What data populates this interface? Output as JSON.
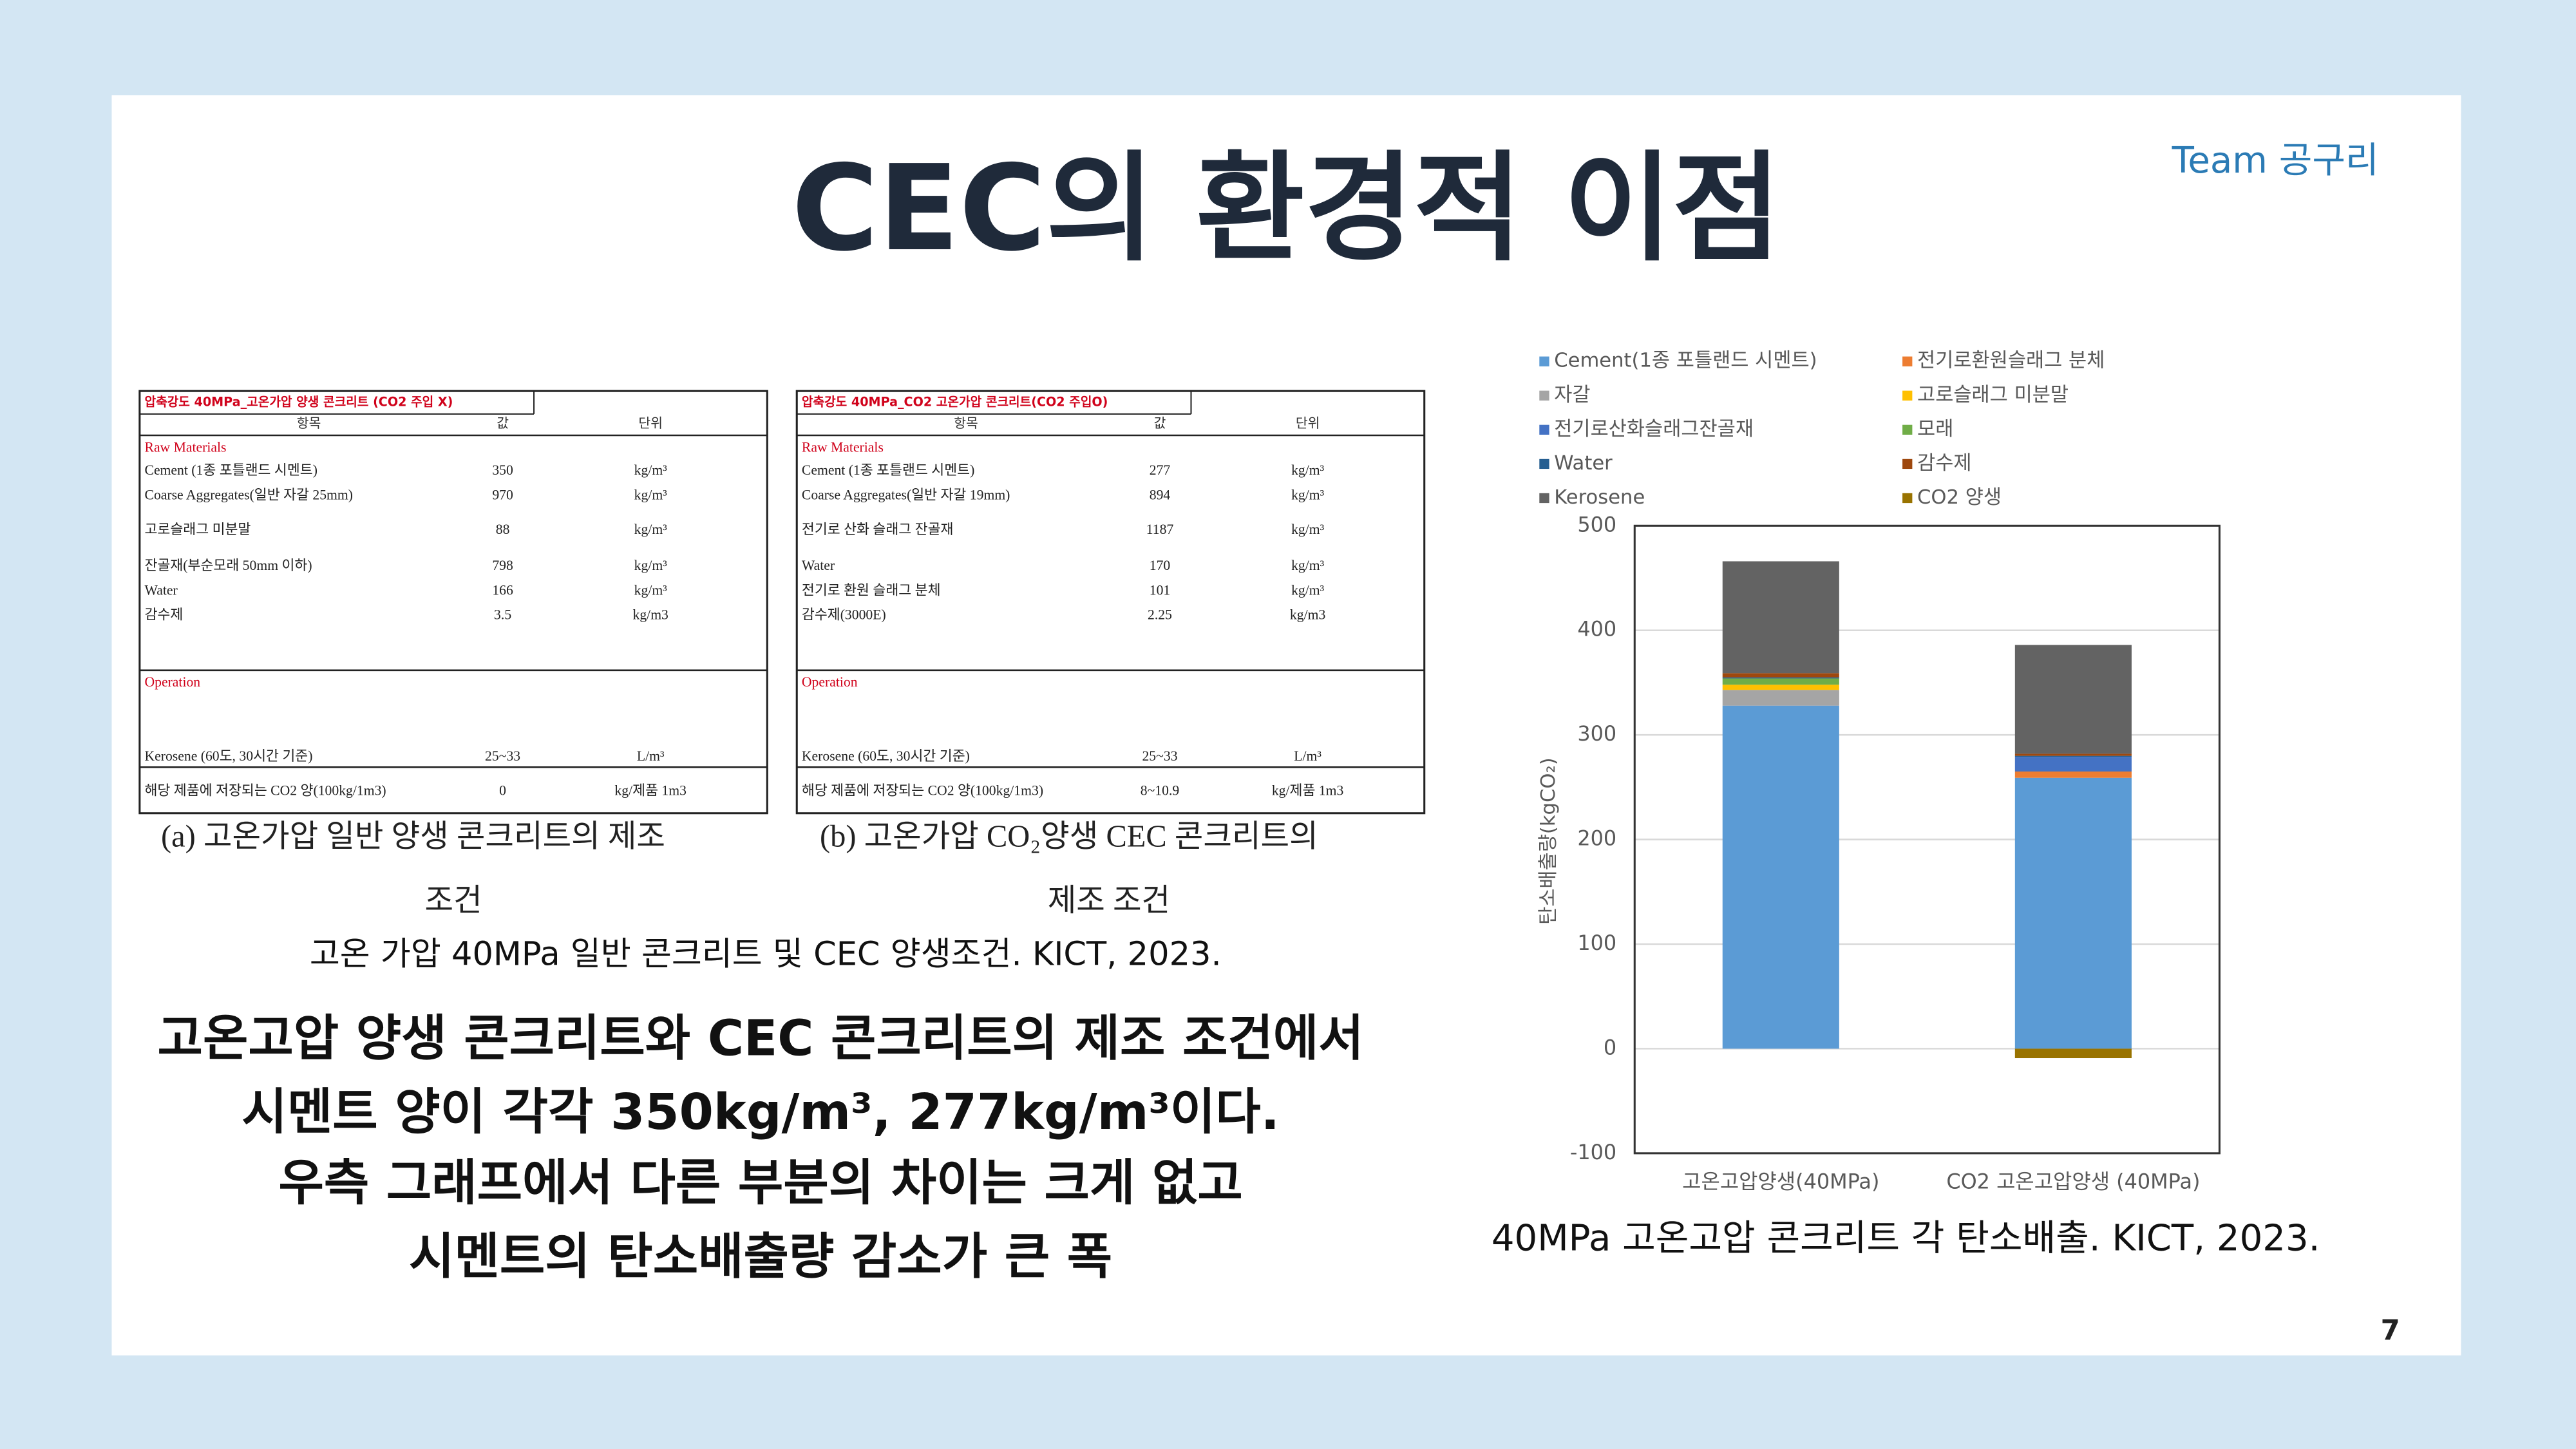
{
  "header": {
    "title": "CEC의 환경적 이점",
    "team": "Team 공구리",
    "page": "7"
  },
  "tables": [
    {
      "title": "압축강도 40MPa_고온가압 양생 콘크리트 (CO2 주입 X)",
      "header": [
        "항목",
        "값",
        "단위"
      ],
      "sections": [
        {
          "name": "Raw Materials",
          "rows": [
            [
              "Cement (1종 포틀랜드 시멘트)",
              "350",
              "kg/m³"
            ],
            [
              "Coarse Aggregates(일반 자갈 25mm)",
              "970",
              "kg/m³"
            ],
            [
              "고로슬래그 미분말",
              "88",
              "kg/m³"
            ],
            [
              "잔골재(부순모래 50mm 이하)",
              "798",
              "kg/m³"
            ],
            [
              "Water",
              "166",
              "kg/m³"
            ],
            [
              "감수제",
              "3.5",
              "kg/m3"
            ]
          ]
        },
        {
          "name": "Operation",
          "rows": [
            [
              "Kerosene (60도, 30시간 기준)",
              "25~33",
              "L/m³"
            ]
          ]
        }
      ],
      "footer": [
        "해당 제품에 저장되는 CO2 양(100kg/1m3)",
        "0",
        "kg/제품 1m3"
      ]
    },
    {
      "title": "압축강도 40MPa_CO2 고온가압 콘크리트(CO2 주입O)",
      "header": [
        "항목",
        "값",
        "단위"
      ],
      "sections": [
        {
          "name": "Raw Materials",
          "rows": [
            [
              "Cement (1종 포틀랜드 시멘트)",
              "277",
              "kg/m³"
            ],
            [
              "Coarse Aggregates(일반 자갈 19mm)",
              "894",
              "kg/m³"
            ],
            [
              "전기로 산화 슬래그 잔골재",
              "1187",
              "kg/m³"
            ],
            [
              "Water",
              "170",
              "kg/m³"
            ],
            [
              "전기로 환원 슬래그 분체",
              "101",
              "kg/m³"
            ],
            [
              "감수제(3000E)",
              "2.25",
              "kg/m3"
            ]
          ]
        },
        {
          "name": "Operation",
          "rows": [
            [
              "Kerosene (60도, 30시간 기준)",
              "25~33",
              "L/m³"
            ]
          ]
        }
      ],
      "footer": [
        "해당 제품에 저장되는 CO2 양(100kg/1m3)",
        "8~10.9",
        "kg/제품 1m3"
      ]
    }
  ],
  "table_captions": [
    [
      "(a) 고온가압 일반 양생 콘크리트의 제조",
      "조건"
    ],
    [
      "(b) 고온가압 CO₂양생 CEC 콘크리트의",
      "제조 조건"
    ]
  ],
  "table_source": "고온 가압 40MPa 일반 콘크리트 및 CEC 양생조건. KICT, 2023.",
  "body": [
    "고온고압 양생 콘크리트와 CEC 콘크리트의 제조 조건에서",
    "시멘트 양이 각각 350kg/m³, 277kg/m³이다.",
    "우측 그래프에서 다른 부분의 차이는 크게 없고",
    "시멘트의 탄소배출량 감소가 큰 폭"
  ],
  "chart_data": {
    "type": "bar",
    "stacked": true,
    "y_label": "탄소배출량(kgCO₂)",
    "categories": [
      "고온고압양생(40MPa)",
      "CO2 고온고압양생 (40MPa)"
    ],
    "series": [
      {
        "name": "Cement(1종 포틀랜드 시멘트)",
        "color": "#5b9bd5",
        "values": [
          328,
          259
        ]
      },
      {
        "name": "전기로환원슬래그 분체",
        "color": "#ed7d31",
        "values": [
          0,
          6
        ]
      },
      {
        "name": "자갈",
        "color": "#a5a5a5",
        "values": [
          15,
          0
        ]
      },
      {
        "name": "고로슬래그 미분말",
        "color": "#ffc000",
        "values": [
          5,
          0
        ]
      },
      {
        "name": "전기로산화슬래그잔골재",
        "color": "#4472c4",
        "values": [
          0,
          14
        ]
      },
      {
        "name": "모래",
        "color": "#70ad47",
        "values": [
          6,
          0
        ]
      },
      {
        "name": "Water",
        "color": "#255e91",
        "values": [
          1,
          1
        ]
      },
      {
        "name": "감수제",
        "color": "#9e480e",
        "values": [
          4,
          2
        ]
      },
      {
        "name": "Kerosene",
        "color": "#636363",
        "values": [
          107,
          104
        ]
      },
      {
        "name": "CO2 양생",
        "color": "#997300",
        "values": [
          0,
          -9
        ]
      }
    ],
    "ylim": [
      -100,
      500
    ],
    "yticks": [
      -100,
      0,
      100,
      200,
      300,
      400,
      500
    ],
    "grid": true,
    "legend": "top"
  },
  "chart_source": "40MPa 고온고압 콘크리트 각 탄소배출. KICT, 2023."
}
